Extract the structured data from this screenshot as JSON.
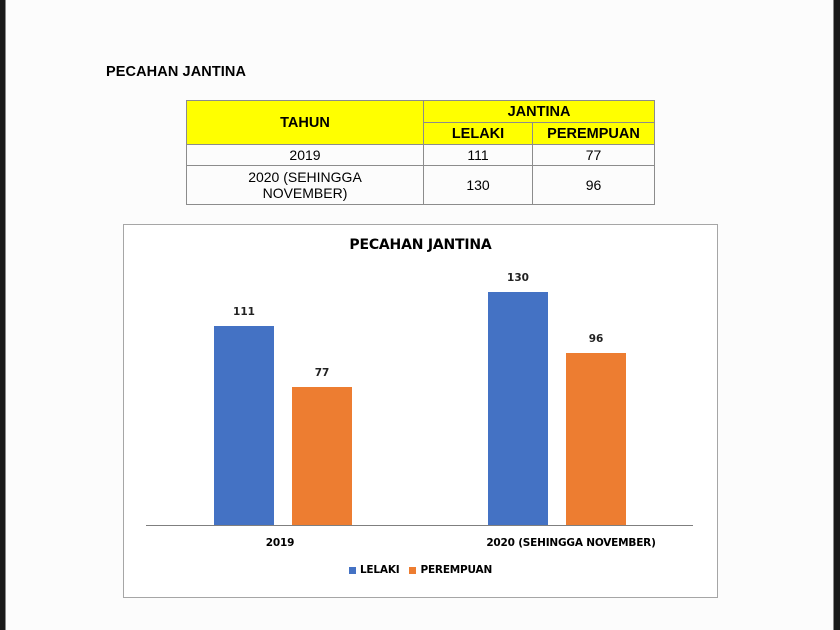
{
  "page": {
    "section_title": "PECAHAN JANTINA"
  },
  "table": {
    "header": {
      "tahun": "TAHUN",
      "jantina": "JANTINA",
      "lelaki": "LELAKI",
      "perempuan": "PEREMPUAN"
    },
    "rows": [
      {
        "tahun": "2019",
        "lelaki": "111",
        "perempuan": "77"
      },
      {
        "tahun": "2020 (SEHINGGA NOVEMBER)",
        "lelaki": "130",
        "perempuan": "96"
      }
    ],
    "header_color": "#ffff00"
  },
  "colors": {
    "lelaki": "#4472c4",
    "perempuan": "#ed7d31"
  },
  "chart_data": {
    "type": "bar",
    "title": "PECAHAN JANTINA",
    "categories": [
      "2019",
      "2020 (SEHINGGA NOVEMBER)"
    ],
    "series": [
      {
        "name": "LELAKI",
        "values": [
          111,
          130
        ],
        "color": "#4472c4"
      },
      {
        "name": "PEREMPUAN",
        "values": [
          77,
          96
        ],
        "color": "#ed7d31"
      }
    ],
    "xlabel": "",
    "ylabel": "",
    "ylim": [
      0,
      140
    ],
    "grid": false,
    "axis_visible": false,
    "data_labels": true,
    "legend_position": "bottom"
  }
}
